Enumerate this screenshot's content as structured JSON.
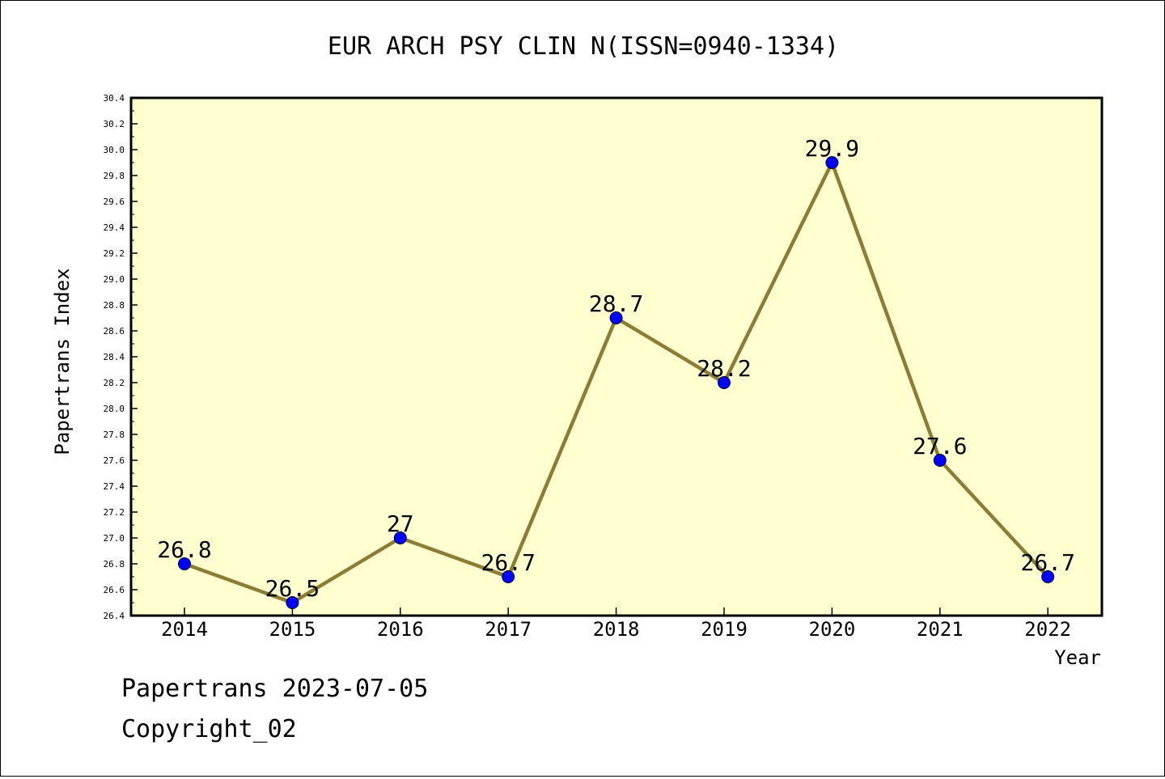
{
  "chart_data": {
    "type": "line",
    "title": "EUR ARCH PSY CLIN N(ISSN=0940-1334)",
    "xlabel": "Year",
    "ylabel": "Papertrans Index",
    "categories": [
      "2014",
      "2015",
      "2016",
      "2017",
      "2018",
      "2019",
      "2020",
      "2021",
      "2022"
    ],
    "series": [
      {
        "values": [
          26.8,
          26.5,
          27.0,
          26.7,
          28.7,
          28.2,
          29.9,
          27.6,
          26.7
        ],
        "labels": [
          "26.8",
          "26.5",
          "27",
          "26.7",
          "28.7",
          "28.2",
          "29.9",
          "27.6",
          "26.7"
        ]
      }
    ],
    "ylim": [
      26.4,
      30.4
    ],
    "yticks": [
      "26.4",
      "26.6",
      "26.8",
      "27.0",
      "27.2",
      "27.4",
      "27.6",
      "27.8",
      "28.0",
      "28.2",
      "28.4",
      "28.6",
      "28.8",
      "29.0",
      "29.2",
      "29.4",
      "29.6",
      "29.8",
      "30.0",
      "30.2",
      "30.4"
    ],
    "grid": false,
    "colors": {
      "plot_background": "#ffffd0",
      "line": "#8b7d35",
      "marker": "#0000ff"
    }
  },
  "footer": {
    "line1": "Papertrans 2023-07-05",
    "line2": "Copyright_02"
  }
}
